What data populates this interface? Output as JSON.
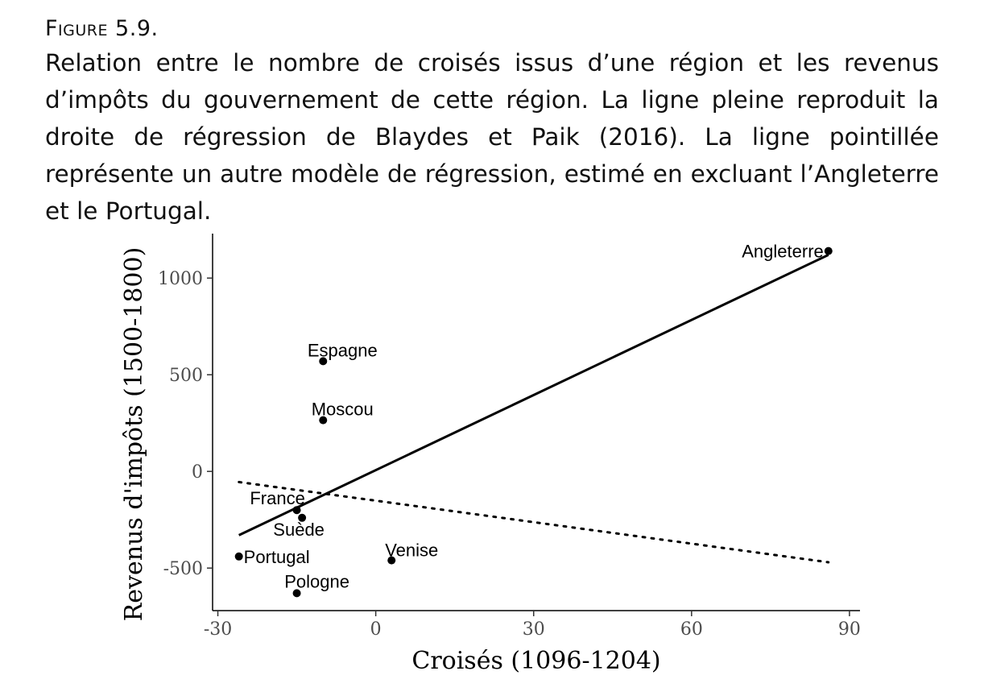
{
  "caption": {
    "figure_label": "Figure 5.9.",
    "text": "Relation entre le nombre de croisés issus d’une région et les revenus d’impôts du gouvernement de cette région. La ligne pleine reproduit la droite de régression de Blaydes et Paik (2016). La ligne pointillée représente un autre modèle de régression, estimé en excluant l’Angleterre et le Portugal."
  },
  "chart_data": {
    "type": "scatter",
    "xlabel": "Croisés (1096-1204)",
    "ylabel": "Revenus d'impôts (1500-1800)",
    "xlim": [
      -31,
      92
    ],
    "ylim": [
      -720,
      1230
    ],
    "x_ticks": [
      -30,
      0,
      30,
      60,
      90
    ],
    "y_ticks": [
      -500,
      0,
      500,
      1000
    ],
    "grid": false,
    "points": [
      {
        "label": "Angleterre",
        "x": 86,
        "y": 1140
      },
      {
        "label": "Espagne",
        "x": -10,
        "y": 570
      },
      {
        "label": "Moscou",
        "x": -10,
        "y": 265
      },
      {
        "label": "France",
        "x": -15,
        "y": -200
      },
      {
        "label": "Suède",
        "x": -14,
        "y": -240
      },
      {
        "label": "Portugal",
        "x": -26,
        "y": -440
      },
      {
        "label": "Venise",
        "x": 3,
        "y": -460
      },
      {
        "label": "Pologne",
        "x": -15,
        "y": -630
      }
    ],
    "lines": [
      {
        "style": "solid",
        "x": [
          -26,
          86
        ],
        "y": [
          -330,
          1120
        ]
      },
      {
        "style": "dotted",
        "x": [
          -26,
          86
        ],
        "y": [
          -55,
          -470
        ]
      }
    ]
  }
}
